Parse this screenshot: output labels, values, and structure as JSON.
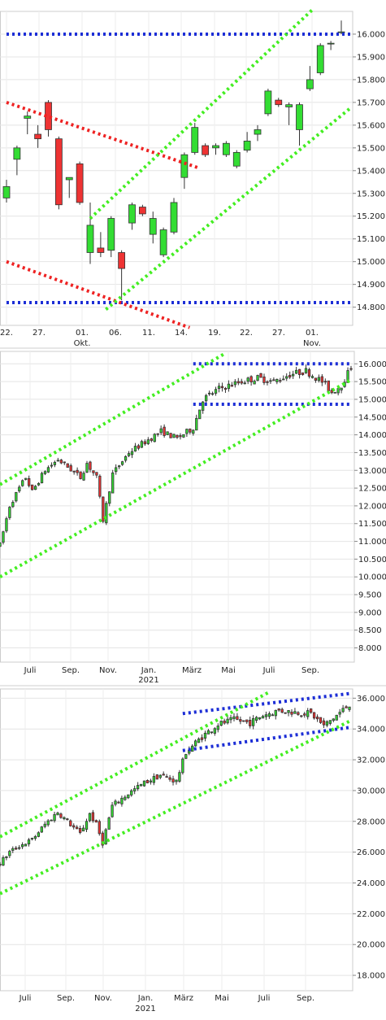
{
  "chart_data": [
    {
      "type": "candlestick",
      "colors": {
        "up": "#33dd33",
        "down": "#ee3333",
        "support_resistance": "#1c2ed6",
        "channel_up": "#44ee22",
        "channel_down": "#ee2222"
      },
      "y_ticks": [
        "16.000",
        "15.900",
        "15.800",
        "15.700",
        "15.600",
        "15.500",
        "15.400",
        "15.300",
        "15.200",
        "15.100",
        "15.000",
        "14.900",
        "14.800"
      ],
      "ylim": [
        14.72,
        16.1
      ],
      "x_ticks": [
        {
          "label": "22.",
          "sub": ""
        },
        {
          "label": "27.",
          "sub": ""
        },
        {
          "label": "01.",
          "sub": "Okt."
        },
        {
          "label": "06.",
          "sub": ""
        },
        {
          "label": "11.",
          "sub": ""
        },
        {
          "label": "14.",
          "sub": ""
        },
        {
          "label": "19.",
          "sub": ""
        },
        {
          "label": "22.",
          "sub": ""
        },
        {
          "label": "27.",
          "sub": ""
        },
        {
          "label": "01.",
          "sub": "Nov."
        }
      ],
      "candles": [
        {
          "o": 15.28,
          "h": 15.36,
          "l": 15.26,
          "c": 15.33
        },
        {
          "o": 15.45,
          "h": 15.51,
          "l": 15.38,
          "c": 15.5
        },
        {
          "o": 15.63,
          "h": 15.66,
          "l": 15.56,
          "c": 15.64
        },
        {
          "o": 15.56,
          "h": 15.6,
          "l": 15.5,
          "c": 15.54
        },
        {
          "o": 15.7,
          "h": 15.71,
          "l": 15.55,
          "c": 15.58
        },
        {
          "o": 15.54,
          "h": 15.55,
          "l": 15.23,
          "c": 15.25
        },
        {
          "o": 15.36,
          "h": 15.37,
          "l": 15.28,
          "c": 15.37
        },
        {
          "o": 15.43,
          "h": 15.44,
          "l": 15.25,
          "c": 15.26
        },
        {
          "o": 15.04,
          "h": 15.26,
          "l": 14.99,
          "c": 15.16
        },
        {
          "o": 15.06,
          "h": 15.13,
          "l": 15.02,
          "c": 15.04
        },
        {
          "o": 15.05,
          "h": 15.2,
          "l": 15.02,
          "c": 15.19
        },
        {
          "o": 15.04,
          "h": 15.05,
          "l": 14.83,
          "c": 14.97
        },
        {
          "o": 15.17,
          "h": 15.26,
          "l": 15.14,
          "c": 15.25
        },
        {
          "o": 15.24,
          "h": 15.25,
          "l": 15.2,
          "c": 15.21
        },
        {
          "o": 15.12,
          "h": 15.22,
          "l": 15.08,
          "c": 15.19
        },
        {
          "o": 15.03,
          "h": 15.15,
          "l": 15.02,
          "c": 15.14
        },
        {
          "o": 15.13,
          "h": 15.28,
          "l": 15.12,
          "c": 15.26
        },
        {
          "o": 15.37,
          "h": 15.48,
          "l": 15.32,
          "c": 15.47
        },
        {
          "o": 15.48,
          "h": 15.61,
          "l": 15.47,
          "c": 15.59
        },
        {
          "o": 15.51,
          "h": 15.52,
          "l": 15.46,
          "c": 15.47
        },
        {
          "o": 15.5,
          "h": 15.52,
          "l": 15.47,
          "c": 15.51
        },
        {
          "o": 15.47,
          "h": 15.53,
          "l": 15.46,
          "c": 15.52
        },
        {
          "o": 15.42,
          "h": 15.49,
          "l": 15.41,
          "c": 15.48
        },
        {
          "o": 15.49,
          "h": 15.57,
          "l": 15.48,
          "c": 15.53
        },
        {
          "o": 15.56,
          "h": 15.6,
          "l": 15.53,
          "c": 15.58
        },
        {
          "o": 15.65,
          "h": 15.76,
          "l": 15.64,
          "c": 15.75
        },
        {
          "o": 15.71,
          "h": 15.72,
          "l": 15.68,
          "c": 15.69
        },
        {
          "o": 15.68,
          "h": 15.7,
          "l": 15.6,
          "c": 15.69
        },
        {
          "o": 15.58,
          "h": 15.7,
          "l": 15.51,
          "c": 15.69
        },
        {
          "o": 15.76,
          "h": 15.86,
          "l": 15.75,
          "c": 15.8
        },
        {
          "o": 15.83,
          "h": 15.96,
          "l": 15.82,
          "c": 15.95
        },
        {
          "o": 15.96,
          "h": 15.97,
          "l": 15.93,
          "c": 15.96
        },
        {
          "o": 16.01,
          "h": 16.06,
          "l": 16.0,
          "c": 16.01
        }
      ],
      "lines": [
        {
          "style": "support_resistance",
          "from": [
            0,
            16.0
          ],
          "to": [
            33,
            16.0
          ]
        },
        {
          "style": "support_resistance",
          "from": [
            0,
            14.82
          ],
          "to": [
            33,
            14.82
          ]
        },
        {
          "style": "channel_down",
          "from": [
            0,
            15.7
          ],
          "to": [
            18.5,
            15.41
          ]
        },
        {
          "style": "channel_down",
          "from": [
            0,
            15.0
          ],
          "to": [
            17.5,
            14.71
          ]
        },
        {
          "style": "channel_up",
          "from": [
            8,
            15.19
          ],
          "to": [
            29.3,
            16.11
          ]
        },
        {
          "style": "channel_up",
          "from": [
            9.5,
            14.79
          ],
          "to": [
            33,
            15.68
          ]
        }
      ]
    },
    {
      "type": "candlestick",
      "y_ticks": [
        "16.000",
        "15.500",
        "15.000",
        "14.500",
        "14.000",
        "13.500",
        "13.000",
        "12.500",
        "12.000",
        "11.500",
        "11.000",
        "10.500",
        "10.000",
        "9.500",
        "9.000",
        "8.500",
        "8.000"
      ],
      "ylim": [
        7.6,
        16.35
      ],
      "x_ticks": [
        {
          "label": "Juli",
          "sub": ""
        },
        {
          "label": "Sep.",
          "sub": ""
        },
        {
          "label": "Nov.",
          "sub": ""
        },
        {
          "label": "Jan.",
          "sub": "2021"
        },
        {
          "label": "März",
          "sub": ""
        },
        {
          "label": "Mai",
          "sub": ""
        },
        {
          "label": "Juli",
          "sub": ""
        },
        {
          "label": "Sep.",
          "sub": ""
        }
      ],
      "anchors": [
        [
          0,
          10.9
        ],
        [
          3,
          12.0
        ],
        [
          6,
          12.5
        ],
        [
          8,
          12.8
        ],
        [
          10,
          12.4
        ],
        [
          14,
          13.0
        ],
        [
          18,
          13.3
        ],
        [
          21,
          13.1
        ],
        [
          25,
          12.8
        ],
        [
          27,
          13.2
        ],
        [
          30,
          12.8
        ],
        [
          32,
          11.6
        ],
        [
          35,
          12.9
        ],
        [
          40,
          13.5
        ],
        [
          45,
          13.8
        ],
        [
          50,
          14.1
        ],
        [
          55,
          13.9
        ],
        [
          60,
          14.2
        ],
        [
          63,
          15.0
        ],
        [
          68,
          15.3
        ],
        [
          75,
          15.5
        ],
        [
          80,
          15.6
        ],
        [
          85,
          15.5
        ],
        [
          90,
          15.7
        ],
        [
          95,
          15.8
        ],
        [
          100,
          15.5
        ],
        [
          103,
          15.2
        ],
        [
          106,
          15.4
        ],
        [
          109,
          15.9
        ]
      ],
      "lines": [
        {
          "style": "support_resistance",
          "from": [
            60,
            16.0
          ],
          "to": [
            109,
            16.0
          ]
        },
        {
          "style": "support_resistance",
          "from": [
            60,
            14.86
          ],
          "to": [
            109,
            14.86
          ]
        },
        {
          "style": "channel_up",
          "from": [
            0,
            12.6
          ],
          "to": [
            70,
            16.3
          ]
        },
        {
          "style": "channel_up",
          "from": [
            0,
            10.0
          ],
          "to": [
            109,
            15.55
          ]
        }
      ]
    },
    {
      "type": "candlestick",
      "y_ticks": [
        "36.000",
        "34.000",
        "32.000",
        "30.000",
        "28.000",
        "26.000",
        "24.000",
        "22.000",
        "20.000",
        "18.000"
      ],
      "ylim": [
        17.0,
        36.6
      ],
      "x_ticks": [
        {
          "label": "Juli",
          "sub": ""
        },
        {
          "label": "Sep.",
          "sub": ""
        },
        {
          "label": "Nov.",
          "sub": ""
        },
        {
          "label": "Jan.",
          "sub": "2021"
        },
        {
          "label": "März",
          "sub": ""
        },
        {
          "label": "Mai",
          "sub": ""
        },
        {
          "label": "Juli",
          "sub": ""
        },
        {
          "label": "Sep.",
          "sub": ""
        }
      ],
      "anchors": [
        [
          0,
          25.3
        ],
        [
          3,
          26.0
        ],
        [
          6,
          26.4
        ],
        [
          10,
          26.8
        ],
        [
          14,
          27.8
        ],
        [
          18,
          28.6
        ],
        [
          21,
          28.0
        ],
        [
          25,
          27.2
        ],
        [
          28,
          28.5
        ],
        [
          30,
          27.8
        ],
        [
          32,
          26.6
        ],
        [
          35,
          29.0
        ],
        [
          40,
          29.8
        ],
        [
          45,
          30.5
        ],
        [
          50,
          31.0
        ],
        [
          55,
          30.6
        ],
        [
          58,
          32.5
        ],
        [
          63,
          33.5
        ],
        [
          68,
          34.3
        ],
        [
          73,
          34.6
        ],
        [
          78,
          34.4
        ],
        [
          82,
          34.9
        ],
        [
          87,
          35.2
        ],
        [
          92,
          35.1
        ],
        [
          97,
          35.0
        ],
        [
          101,
          34.2
        ],
        [
          104,
          34.7
        ],
        [
          109,
          35.6
        ]
      ],
      "lines": [
        {
          "style": "support_resistance",
          "from": [
            57,
            35.0
          ],
          "to": [
            109,
            36.3
          ]
        },
        {
          "style": "support_resistance",
          "from": [
            57,
            32.6
          ],
          "to": [
            109,
            34.1
          ]
        },
        {
          "style": "channel_up",
          "from": [
            0,
            27.0
          ],
          "to": [
            84,
            36.4
          ]
        },
        {
          "style": "channel_up",
          "from": [
            0,
            23.3
          ],
          "to": [
            109,
            34.5
          ]
        }
      ]
    }
  ]
}
